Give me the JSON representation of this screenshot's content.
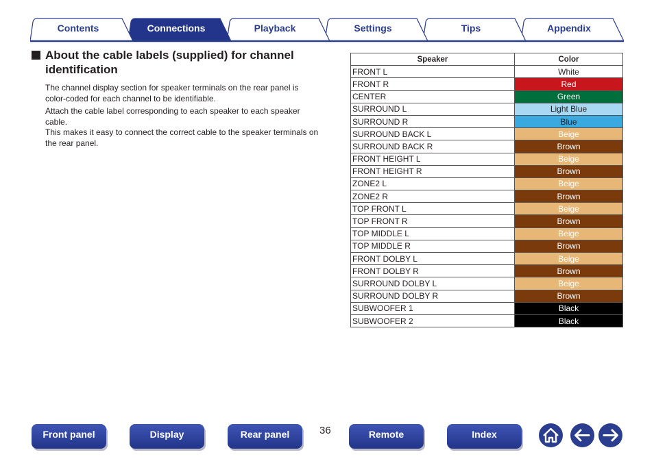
{
  "tabs": [
    {
      "label": "Contents",
      "active": false
    },
    {
      "label": "Connections",
      "active": true
    },
    {
      "label": "Playback",
      "active": false
    },
    {
      "label": "Settings",
      "active": false
    },
    {
      "label": "Tips",
      "active": false
    },
    {
      "label": "Appendix",
      "active": false
    }
  ],
  "section": {
    "title": "About the cable labels (supplied) for channel identification",
    "paragraphs": [
      "The channel display section for speaker terminals on the rear panel is color-coded for each channel to be identifiable.",
      "Attach the cable label corresponding to each speaker to each speaker cable.",
      "This makes it easy to connect the correct cable to the speaker terminals on the rear panel."
    ]
  },
  "table": {
    "headers": [
      "Speaker",
      "Color"
    ],
    "rows": [
      {
        "speaker": "FRONT L",
        "color": "White",
        "bg": "#ffffff",
        "fg": "#231f20"
      },
      {
        "speaker": "FRONT R",
        "color": "Red",
        "bg": "#c8161d",
        "fg": "#ffffff"
      },
      {
        "speaker": "CENTER",
        "color": "Green",
        "bg": "#006f3c",
        "fg": "#ffffff"
      },
      {
        "speaker": "SURROUND L",
        "color": "Light Blue",
        "bg": "#a9d8f2",
        "fg": "#231f20"
      },
      {
        "speaker": "SURROUND R",
        "color": "Blue",
        "bg": "#3aa9e0",
        "fg": "#231f20"
      },
      {
        "speaker": "SURROUND BACK L",
        "color": "Beige",
        "bg": "#e7b777",
        "fg": "#ffffff"
      },
      {
        "speaker": "SURROUND BACK R",
        "color": "Brown",
        "bg": "#7a3a0c",
        "fg": "#ffffff"
      },
      {
        "speaker": "FRONT HEIGHT L",
        "color": "Beige",
        "bg": "#e7b777",
        "fg": "#ffffff"
      },
      {
        "speaker": "FRONT HEIGHT R",
        "color": "Brown",
        "bg": "#7a3a0c",
        "fg": "#ffffff"
      },
      {
        "speaker": "ZONE2 L",
        "color": "Beige",
        "bg": "#e7b777",
        "fg": "#ffffff"
      },
      {
        "speaker": "ZONE2 R",
        "color": "Brown",
        "bg": "#7a3a0c",
        "fg": "#ffffff"
      },
      {
        "speaker": "TOP FRONT L",
        "color": "Beige",
        "bg": "#e7b777",
        "fg": "#ffffff"
      },
      {
        "speaker": "TOP FRONT R",
        "color": "Brown",
        "bg": "#7a3a0c",
        "fg": "#ffffff"
      },
      {
        "speaker": "TOP MIDDLE L",
        "color": "Beige",
        "bg": "#e7b777",
        "fg": "#ffffff"
      },
      {
        "speaker": "TOP MIDDLE R",
        "color": "Brown",
        "bg": "#7a3a0c",
        "fg": "#ffffff"
      },
      {
        "speaker": "FRONT DOLBY L",
        "color": "Beige",
        "bg": "#e7b777",
        "fg": "#ffffff"
      },
      {
        "speaker": "FRONT DOLBY R",
        "color": "Brown",
        "bg": "#7a3a0c",
        "fg": "#ffffff"
      },
      {
        "speaker": "SURROUND DOLBY L",
        "color": "Beige",
        "bg": "#e7b777",
        "fg": "#ffffff"
      },
      {
        "speaker": "SURROUND DOLBY R",
        "color": "Brown",
        "bg": "#7a3a0c",
        "fg": "#ffffff"
      },
      {
        "speaker": "SUBWOOFER 1",
        "color": "Black",
        "bg": "#000000",
        "fg": "#ffffff"
      },
      {
        "speaker": "SUBWOOFER 2",
        "color": "Black",
        "bg": "#000000",
        "fg": "#ffffff"
      }
    ]
  },
  "footer": {
    "buttons": [
      "Front panel",
      "Display",
      "Rear panel",
      "Remote",
      "Index"
    ],
    "page_number": "36",
    "icons": [
      "home-icon",
      "back-arrow-icon",
      "forward-arrow-icon"
    ]
  },
  "colors": {
    "accent": "#2a3d8f",
    "tab_active": "#22358a"
  }
}
